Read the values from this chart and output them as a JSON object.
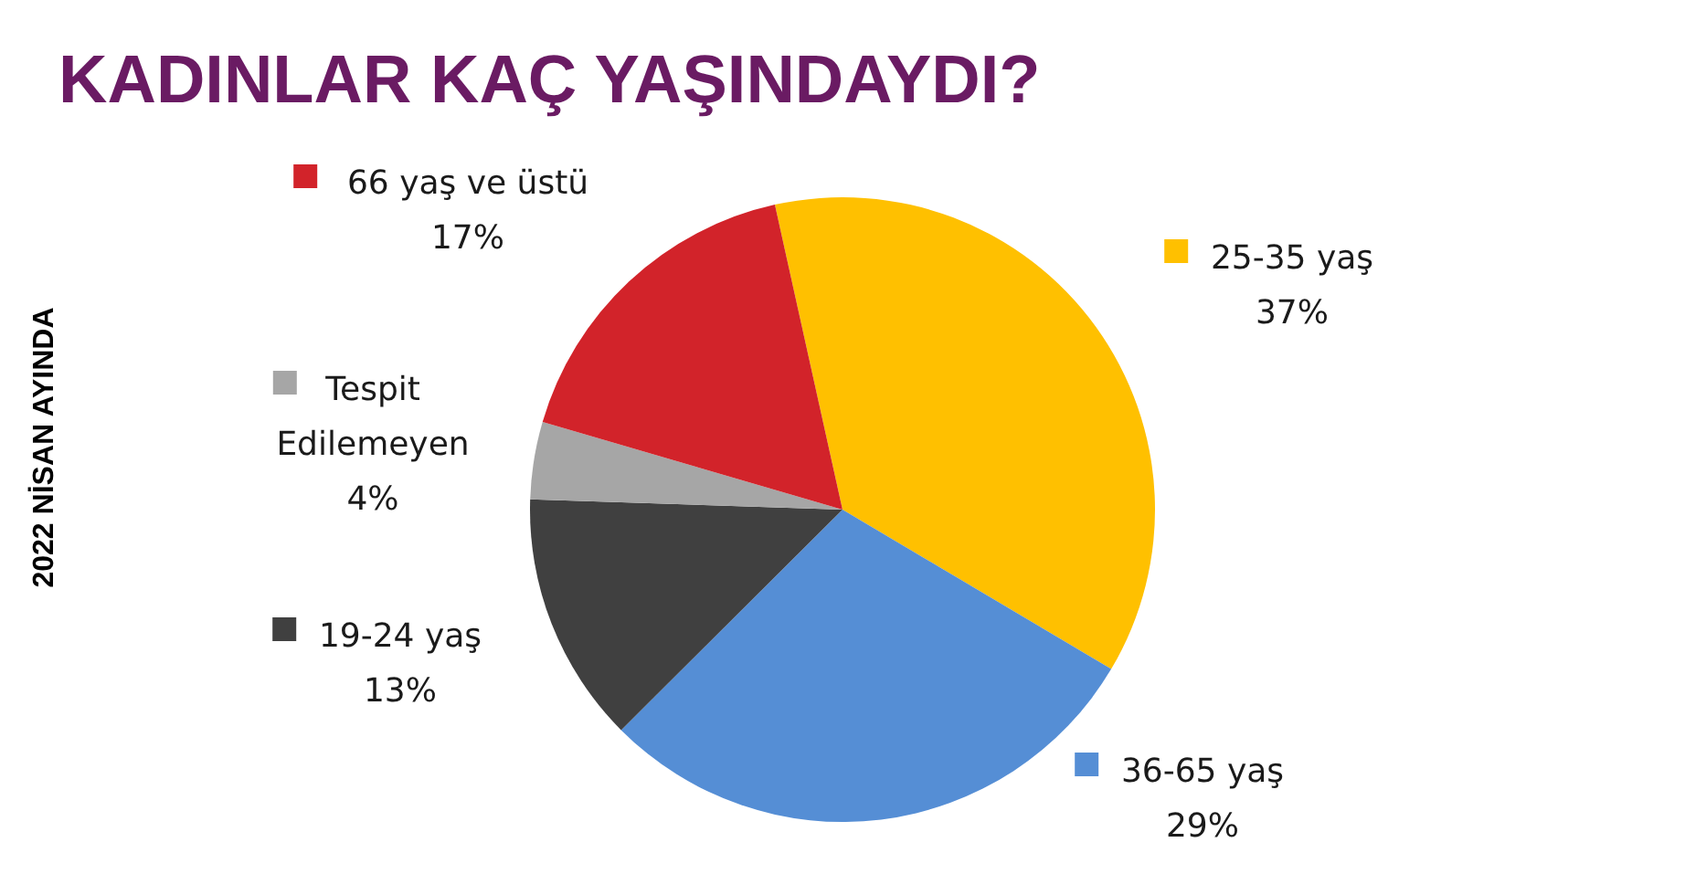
{
  "chart_data": {
    "type": "pie",
    "title": "KADINLAR KAÇ YAŞINDAYDI?",
    "subtitle": "2022 NİSAN AYINDA",
    "categories": [
      "25-35 yaş",
      "36-65 yaş",
      "19-24 yaş",
      "Tespit Edilemeyen",
      "66 yaş ve üstü"
    ],
    "values": [
      37,
      29,
      13,
      4,
      17
    ],
    "colors": [
      "#ffc000",
      "#558ed5",
      "#404040",
      "#a6a6a6",
      "#d2232a"
    ],
    "value_labels": [
      "37%",
      "29%",
      "13%",
      "4%",
      "17%"
    ],
    "legend": "left"
  }
}
